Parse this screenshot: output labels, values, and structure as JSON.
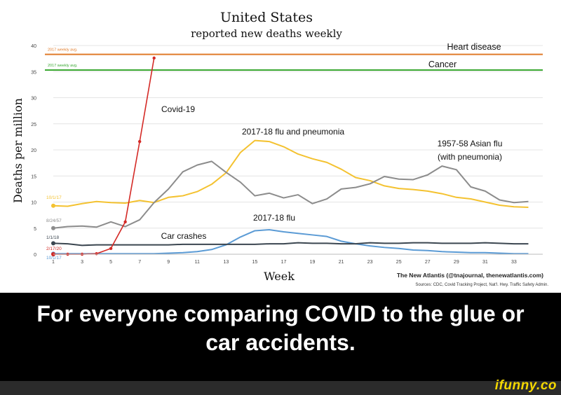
{
  "chart_data": {
    "type": "line",
    "title": "United States",
    "subtitle": "reported new deaths weekly",
    "xlabel": "Week",
    "ylabel": "Deaths per million",
    "xlim": [
      1,
      35
    ],
    "ylim": [
      0,
      40
    ],
    "x_ticks": [
      "1",
      "3",
      "5",
      "7",
      "9",
      "11",
      "13",
      "15",
      "17",
      "19",
      "21",
      "23",
      "25",
      "27",
      "29",
      "31",
      "33"
    ],
    "y_ticks": [
      "0",
      "5",
      "10",
      "15",
      "20",
      "25",
      "30",
      "35",
      "40"
    ],
    "grid": "horizontal",
    "reference_lines": [
      {
        "label": "Heart disease",
        "note": "2017 weekly avg.",
        "value": 38.3,
        "color": "#e07b2a"
      },
      {
        "label": "Cancer",
        "note": "2017 weekly avg.",
        "value": 35.3,
        "color": "#3aa832"
      }
    ],
    "series": [
      {
        "name": "2017-18 flu and pneumonia",
        "start_label": "10/1/17",
        "color": "#f4c230",
        "x": [
          1,
          2,
          3,
          4,
          5,
          6,
          7,
          8,
          9,
          10,
          11,
          12,
          13,
          14,
          15,
          16,
          17,
          18,
          19,
          20,
          21,
          22,
          23,
          24,
          25,
          26,
          27,
          28,
          29,
          30,
          31,
          32,
          33,
          34,
          35
        ],
        "y": [
          9.3,
          9.2,
          9.7,
          10.1,
          9.9,
          9.8,
          10.3,
          9.9,
          10.9,
          11.2,
          12.0,
          13.4,
          15.6,
          19.5,
          21.8,
          21.6,
          20.6,
          19.2,
          18.3,
          17.6,
          16.3,
          14.7,
          14.1,
          13.1,
          12.6,
          12.4,
          12.1,
          11.6,
          10.9,
          10.6,
          10.0,
          9.4,
          9.1,
          9.0,
          null
        ]
      },
      {
        "name": "1957-58 Asian flu (with pneumonia)",
        "start_label": "8/24/57",
        "color": "#8c8c8c",
        "x": [
          1,
          2,
          3,
          4,
          5,
          6,
          7,
          8,
          9,
          10,
          11,
          12,
          13,
          14,
          15,
          16,
          17,
          18,
          19,
          20,
          21,
          22,
          23,
          24,
          25,
          26,
          27,
          28,
          29,
          30,
          31,
          32,
          33,
          34,
          35
        ],
        "y": [
          5.0,
          5.3,
          5.4,
          5.2,
          6.2,
          5.3,
          6.6,
          9.9,
          12.5,
          15.8,
          17.1,
          17.8,
          15.7,
          13.8,
          11.2,
          11.7,
          10.8,
          11.4,
          9.7,
          10.6,
          12.5,
          12.8,
          13.5,
          14.9,
          14.4,
          14.3,
          15.2,
          16.9,
          16.2,
          12.9,
          12.1,
          10.4,
          9.9,
          10.1,
          null
        ]
      },
      {
        "name": "2017-18 flu",
        "start_label": "10/1/17",
        "color": "#5b9bd5",
        "x": [
          1,
          2,
          3,
          4,
          5,
          6,
          7,
          8,
          9,
          10,
          11,
          12,
          13,
          14,
          15,
          16,
          17,
          18,
          19,
          20,
          21,
          22,
          23,
          24,
          25,
          26,
          27,
          28,
          29,
          30,
          31,
          32,
          33,
          34,
          35
        ],
        "y": [
          0.1,
          0.1,
          0.1,
          0.1,
          0.1,
          0.1,
          0.1,
          0.1,
          0.2,
          0.3,
          0.5,
          0.9,
          1.8,
          3.3,
          4.5,
          4.7,
          4.3,
          4.0,
          3.7,
          3.4,
          2.5,
          2.0,
          1.6,
          1.3,
          1.1,
          0.8,
          0.7,
          0.5,
          0.4,
          0.3,
          0.3,
          0.2,
          0.1,
          0.1,
          null
        ]
      },
      {
        "name": "Car crashes",
        "start_label": "1/1/18",
        "color": "#3b4650",
        "x": [
          1,
          2,
          3,
          4,
          5,
          6,
          7,
          8,
          9,
          10,
          11,
          12,
          13,
          14,
          15,
          16,
          17,
          18,
          19,
          20,
          21,
          22,
          23,
          24,
          25,
          26,
          27,
          28,
          29,
          30,
          31,
          32,
          33,
          34,
          35
        ],
        "y": [
          2.1,
          2.0,
          1.7,
          1.8,
          1.8,
          1.8,
          1.8,
          1.8,
          1.8,
          1.9,
          1.9,
          1.9,
          1.9,
          1.9,
          1.9,
          2.0,
          2.0,
          2.2,
          2.1,
          2.1,
          2.0,
          2.0,
          2.2,
          2.1,
          2.1,
          2.2,
          2.2,
          2.1,
          2.1,
          2.1,
          2.2,
          2.1,
          2.0,
          2.0,
          null
        ]
      },
      {
        "name": "Covid-19",
        "start_label": "2/17/20",
        "color": "#d42a26",
        "x": [
          1,
          2,
          3,
          4,
          5,
          6,
          7,
          8
        ],
        "y": [
          0.0,
          0.0,
          0.0,
          0.1,
          1.1,
          6.2,
          21.6,
          37.6
        ]
      }
    ],
    "credit": "The New Atlantis (@tnajournal, thenewatlantis.com)",
    "sources": "Sources: CDC, Covid Tracking Project, Nat'l. Hwy. Traffic Safety Admin."
  },
  "caption": {
    "line1": "For everyone comparing COVID to the glue or",
    "line2": "car accidents."
  },
  "watermark": "ifunny.co"
}
